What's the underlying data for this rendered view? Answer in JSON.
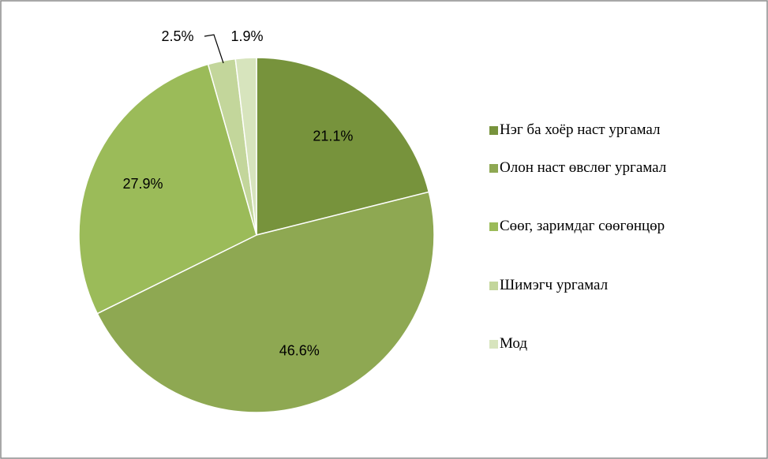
{
  "chart_data": {
    "type": "pie",
    "categories": [
      "Нэг ба хоёр наст ургамал",
      "Олон наст өвслөг ургамал",
      "Сөөг, заримдаг сөөгөнцөр",
      "Шимэгч ургамал",
      "Мод"
    ],
    "values": [
      21.1,
      46.6,
      27.9,
      2.5,
      1.9
    ],
    "value_labels": [
      "21.1%",
      "46.6%",
      "27.9%",
      "2.5%",
      "1.9%"
    ],
    "colors": [
      "#77933c",
      "#8ea852",
      "#9bbb59",
      "#c3d69b",
      "#d7e4bd"
    ],
    "legend": "right"
  }
}
